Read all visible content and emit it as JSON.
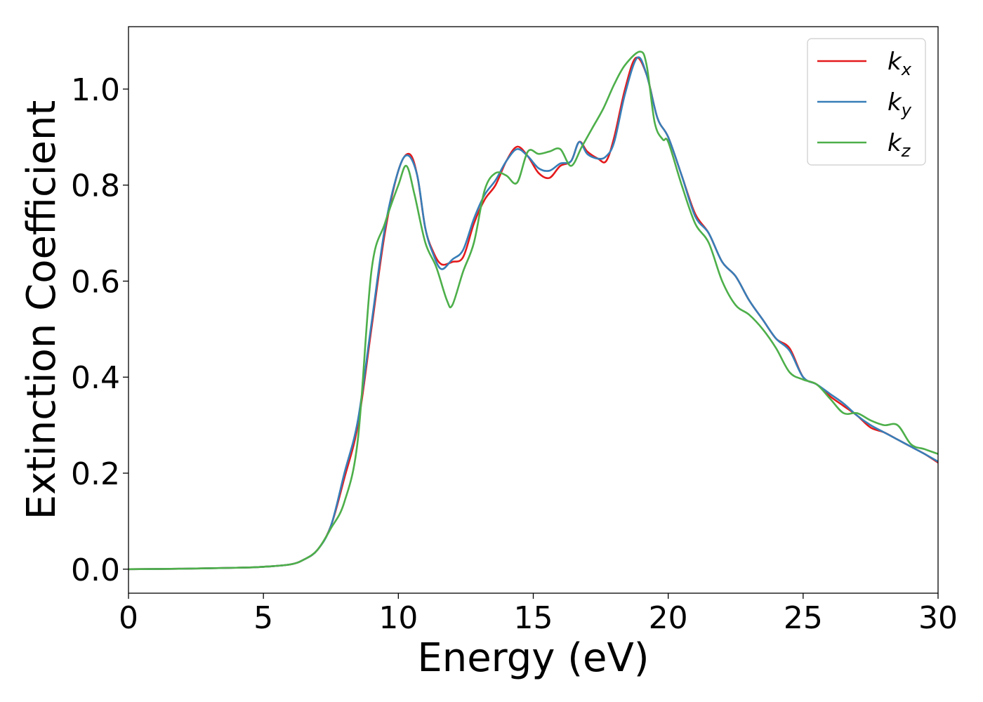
{
  "chart_data": {
    "type": "line",
    "title": "",
    "xlabel": "Energy (eV)",
    "ylabel": "Extinction Coefficient",
    "xlim": [
      0,
      30
    ],
    "ylim": [
      -0.05,
      1.13
    ],
    "xticks": [
      0,
      5,
      10,
      15,
      20,
      25,
      30
    ],
    "xtick_labels": [
      "0",
      "5",
      "10",
      "15",
      "20",
      "25",
      "30"
    ],
    "yticks": [
      0.0,
      0.2,
      0.4,
      0.6,
      0.8,
      1.0
    ],
    "ytick_labels": [
      "0.0",
      "0.2",
      "0.4",
      "0.6",
      "0.8",
      "1.0"
    ],
    "grid": false,
    "legend_position": "top-right",
    "series": [
      {
        "name": "k",
        "subscript": "x",
        "color": "#e41a1c",
        "points": [
          [
            0,
            0.0
          ],
          [
            2,
            0.001
          ],
          [
            4,
            0.003
          ],
          [
            5,
            0.005
          ],
          [
            6,
            0.01
          ],
          [
            6.5,
            0.02
          ],
          [
            7,
            0.04
          ],
          [
            7.5,
            0.09
          ],
          [
            8,
            0.19
          ],
          [
            8.5,
            0.3
          ],
          [
            9,
            0.5
          ],
          [
            9.5,
            0.7
          ],
          [
            10,
            0.83
          ],
          [
            10.4,
            0.865
          ],
          [
            10.7,
            0.82
          ],
          [
            11,
            0.71
          ],
          [
            11.3,
            0.66
          ],
          [
            11.6,
            0.635
          ],
          [
            12,
            0.64
          ],
          [
            12.4,
            0.65
          ],
          [
            12.8,
            0.72
          ],
          [
            13.2,
            0.77
          ],
          [
            13.6,
            0.8
          ],
          [
            14,
            0.85
          ],
          [
            14.4,
            0.88
          ],
          [
            14.8,
            0.86
          ],
          [
            15.2,
            0.825
          ],
          [
            15.6,
            0.815
          ],
          [
            16,
            0.84
          ],
          [
            16.4,
            0.85
          ],
          [
            16.7,
            0.89
          ],
          [
            17,
            0.87
          ],
          [
            17.4,
            0.855
          ],
          [
            17.7,
            0.85
          ],
          [
            18,
            0.9
          ],
          [
            18.4,
            1.0
          ],
          [
            18.8,
            1.065
          ],
          [
            19.2,
            1.03
          ],
          [
            19.6,
            0.94
          ],
          [
            20,
            0.9
          ],
          [
            20.5,
            0.82
          ],
          [
            21,
            0.74
          ],
          [
            21.5,
            0.7
          ],
          [
            22,
            0.64
          ],
          [
            22.5,
            0.61
          ],
          [
            23,
            0.56
          ],
          [
            23.5,
            0.52
          ],
          [
            24,
            0.48
          ],
          [
            24.5,
            0.46
          ],
          [
            25,
            0.4
          ],
          [
            25.5,
            0.385
          ],
          [
            26,
            0.36
          ],
          [
            26.5,
            0.34
          ],
          [
            27,
            0.32
          ],
          [
            27.5,
            0.295
          ],
          [
            28,
            0.285
          ],
          [
            28.5,
            0.27
          ],
          [
            29,
            0.255
          ],
          [
            29.5,
            0.24
          ],
          [
            30,
            0.222
          ]
        ]
      },
      {
        "name": "k",
        "subscript": "y",
        "color": "#377eb8",
        "points": [
          [
            0,
            0.0
          ],
          [
            2,
            0.001
          ],
          [
            4,
            0.003
          ],
          [
            5,
            0.005
          ],
          [
            6,
            0.01
          ],
          [
            6.5,
            0.02
          ],
          [
            7,
            0.04
          ],
          [
            7.5,
            0.09
          ],
          [
            8,
            0.2
          ],
          [
            8.5,
            0.31
          ],
          [
            9,
            0.51
          ],
          [
            9.5,
            0.71
          ],
          [
            10,
            0.83
          ],
          [
            10.35,
            0.862
          ],
          [
            10.7,
            0.82
          ],
          [
            11,
            0.71
          ],
          [
            11.3,
            0.655
          ],
          [
            11.6,
            0.625
          ],
          [
            12,
            0.645
          ],
          [
            12.4,
            0.665
          ],
          [
            12.8,
            0.73
          ],
          [
            13.2,
            0.78
          ],
          [
            13.6,
            0.81
          ],
          [
            14,
            0.85
          ],
          [
            14.4,
            0.875
          ],
          [
            14.8,
            0.86
          ],
          [
            15.2,
            0.835
          ],
          [
            15.6,
            0.83
          ],
          [
            16,
            0.845
          ],
          [
            16.4,
            0.85
          ],
          [
            16.7,
            0.89
          ],
          [
            17,
            0.865
          ],
          [
            17.4,
            0.855
          ],
          [
            17.7,
            0.86
          ],
          [
            18,
            0.89
          ],
          [
            18.4,
            0.99
          ],
          [
            18.85,
            1.065
          ],
          [
            19.2,
            1.03
          ],
          [
            19.6,
            0.94
          ],
          [
            20,
            0.9
          ],
          [
            20.5,
            0.82
          ],
          [
            21,
            0.735
          ],
          [
            21.5,
            0.7
          ],
          [
            22,
            0.64
          ],
          [
            22.5,
            0.61
          ],
          [
            23,
            0.56
          ],
          [
            23.5,
            0.52
          ],
          [
            24,
            0.48
          ],
          [
            24.5,
            0.455
          ],
          [
            25,
            0.4
          ],
          [
            25.5,
            0.385
          ],
          [
            26,
            0.365
          ],
          [
            26.5,
            0.345
          ],
          [
            27,
            0.32
          ],
          [
            27.5,
            0.3
          ],
          [
            28,
            0.285
          ],
          [
            28.5,
            0.27
          ],
          [
            29,
            0.255
          ],
          [
            29.5,
            0.24
          ],
          [
            30,
            0.224
          ]
        ]
      },
      {
        "name": "k",
        "subscript": "z",
        "color": "#4daf4a",
        "points": [
          [
            0,
            0.0
          ],
          [
            2,
            0.001
          ],
          [
            4,
            0.003
          ],
          [
            5,
            0.005
          ],
          [
            6,
            0.01
          ],
          [
            6.5,
            0.02
          ],
          [
            7,
            0.04
          ],
          [
            7.5,
            0.085
          ],
          [
            8,
            0.14
          ],
          [
            8.5,
            0.27
          ],
          [
            9,
            0.62
          ],
          [
            9.5,
            0.72
          ],
          [
            10,
            0.8
          ],
          [
            10.3,
            0.84
          ],
          [
            10.6,
            0.78
          ],
          [
            11,
            0.68
          ],
          [
            11.4,
            0.63
          ],
          [
            11.8,
            0.56
          ],
          [
            12,
            0.55
          ],
          [
            12.4,
            0.62
          ],
          [
            12.8,
            0.68
          ],
          [
            13.2,
            0.79
          ],
          [
            13.6,
            0.825
          ],
          [
            14,
            0.82
          ],
          [
            14.4,
            0.805
          ],
          [
            14.8,
            0.87
          ],
          [
            15.2,
            0.865
          ],
          [
            15.6,
            0.87
          ],
          [
            16,
            0.875
          ],
          [
            16.4,
            0.84
          ],
          [
            16.8,
            0.88
          ],
          [
            17.2,
            0.92
          ],
          [
            17.6,
            0.96
          ],
          [
            18,
            1.01
          ],
          [
            18.4,
            1.05
          ],
          [
            18.95,
            1.078
          ],
          [
            19.2,
            1.05
          ],
          [
            19.5,
            0.93
          ],
          [
            19.8,
            0.895
          ],
          [
            20,
            0.89
          ],
          [
            20.5,
            0.8
          ],
          [
            21,
            0.72
          ],
          [
            21.5,
            0.68
          ],
          [
            22,
            0.6
          ],
          [
            22.5,
            0.55
          ],
          [
            23,
            0.53
          ],
          [
            23.5,
            0.5
          ],
          [
            24,
            0.46
          ],
          [
            24.5,
            0.41
          ],
          [
            25,
            0.395
          ],
          [
            25.5,
            0.385
          ],
          [
            26,
            0.355
          ],
          [
            26.5,
            0.325
          ],
          [
            27,
            0.325
          ],
          [
            27.5,
            0.31
          ],
          [
            28,
            0.3
          ],
          [
            28.5,
            0.3
          ],
          [
            29,
            0.26
          ],
          [
            29.5,
            0.25
          ],
          [
            30,
            0.24
          ]
        ]
      }
    ]
  }
}
